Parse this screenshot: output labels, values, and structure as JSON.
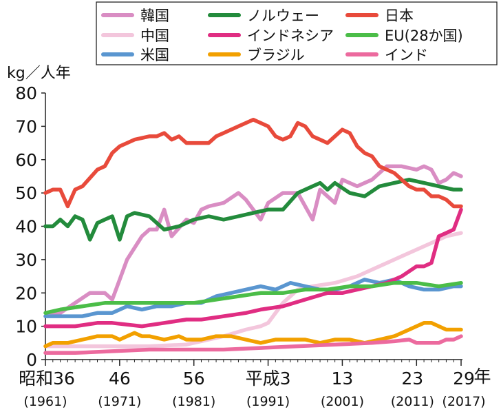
{
  "chart_data": {
    "type": "line",
    "ylabel": "kg／人年",
    "ylim": [
      0,
      80
    ],
    "yticks": [
      0,
      10,
      20,
      30,
      40,
      50,
      60,
      70,
      80
    ],
    "xlim": [
      1961,
      2017
    ],
    "x_tick_labels": [
      {
        "year": 1961,
        "line1": "昭和36",
        "line2": "(1961)"
      },
      {
        "year": 1971,
        "line1": "46",
        "line2": "(1971)"
      },
      {
        "year": 1981,
        "line1": "56",
        "line2": "(1981)"
      },
      {
        "year": 1991,
        "line1": "平成3",
        "line2": "(1991)"
      },
      {
        "year": 2001,
        "line1": "13",
        "line2": "(2001)"
      },
      {
        "year": 2011,
        "line1": "23",
        "line2": "(2011)"
      },
      {
        "year": 2017,
        "line1": "29",
        "line2": "(2017)"
      }
    ],
    "x_unit_label": "年",
    "legend_placement": "top",
    "series": [
      {
        "name": "韓国",
        "color": "#d98dc3",
        "points": [
          [
            1961,
            13
          ],
          [
            1963,
            14
          ],
          [
            1965,
            17
          ],
          [
            1967,
            20
          ],
          [
            1969,
            20
          ],
          [
            1970,
            18
          ],
          [
            1971,
            24
          ],
          [
            1972,
            30
          ],
          [
            1974,
            37
          ],
          [
            1975,
            39
          ],
          [
            1976,
            39
          ],
          [
            1977,
            45
          ],
          [
            1978,
            37
          ],
          [
            1980,
            42
          ],
          [
            1981,
            41
          ],
          [
            1982,
            45
          ],
          [
            1983,
            46
          ],
          [
            1985,
            47
          ],
          [
            1987,
            50
          ],
          [
            1988,
            48
          ],
          [
            1990,
            42
          ],
          [
            1991,
            47
          ],
          [
            1993,
            50
          ],
          [
            1995,
            50
          ],
          [
            1997,
            42
          ],
          [
            1998,
            51
          ],
          [
            2000,
            47
          ],
          [
            2001,
            54
          ],
          [
            2003,
            52
          ],
          [
            2005,
            54
          ],
          [
            2007,
            58
          ],
          [
            2009,
            58
          ],
          [
            2011,
            57
          ],
          [
            2012,
            58
          ],
          [
            2013,
            57
          ],
          [
            2014,
            53
          ],
          [
            2015,
            54
          ],
          [
            2016,
            56
          ],
          [
            2017,
            55
          ]
        ]
      },
      {
        "name": "中国",
        "color": "#f3c6dc",
        "points": [
          [
            1961,
            4
          ],
          [
            1965,
            4
          ],
          [
            1970,
            4
          ],
          [
            1975,
            4
          ],
          [
            1980,
            4.5
          ],
          [
            1985,
            7
          ],
          [
            1988,
            9
          ],
          [
            1990,
            10
          ],
          [
            1991,
            11
          ],
          [
            1993,
            17
          ],
          [
            1995,
            21
          ],
          [
            1997,
            22
          ],
          [
            2000,
            23
          ],
          [
            2003,
            25
          ],
          [
            2005,
            27
          ],
          [
            2007,
            29
          ],
          [
            2009,
            31
          ],
          [
            2011,
            33
          ],
          [
            2013,
            35
          ],
          [
            2015,
            37
          ],
          [
            2017,
            38
          ]
        ]
      },
      {
        "name": "米国",
        "color": "#5a96d0",
        "points": [
          [
            1961,
            13
          ],
          [
            1963,
            13
          ],
          [
            1966,
            13
          ],
          [
            1968,
            14
          ],
          [
            1970,
            14
          ],
          [
            1972,
            16
          ],
          [
            1974,
            15
          ],
          [
            1976,
            16
          ],
          [
            1978,
            16
          ],
          [
            1980,
            17
          ],
          [
            1982,
            17
          ],
          [
            1984,
            19
          ],
          [
            1986,
            20
          ],
          [
            1988,
            21
          ],
          [
            1990,
            22
          ],
          [
            1992,
            21
          ],
          [
            1994,
            23
          ],
          [
            1996,
            22
          ],
          [
            1998,
            21
          ],
          [
            2000,
            21
          ],
          [
            2002,
            22
          ],
          [
            2004,
            24
          ],
          [
            2006,
            23
          ],
          [
            2008,
            24
          ],
          [
            2010,
            22
          ],
          [
            2012,
            21
          ],
          [
            2014,
            21
          ],
          [
            2016,
            22
          ],
          [
            2017,
            22
          ]
        ]
      },
      {
        "name": "ノルウェー",
        "color": "#238b3c",
        "points": [
          [
            1961,
            40
          ],
          [
            1962,
            40
          ],
          [
            1963,
            42
          ],
          [
            1964,
            40
          ],
          [
            1965,
            43
          ],
          [
            1966,
            42
          ],
          [
            1967,
            36
          ],
          [
            1968,
            41
          ],
          [
            1969,
            42
          ],
          [
            1970,
            43
          ],
          [
            1971,
            36
          ],
          [
            1972,
            43
          ],
          [
            1973,
            44
          ],
          [
            1975,
            43
          ],
          [
            1976,
            41
          ],
          [
            1977,
            39
          ],
          [
            1979,
            40
          ],
          [
            1981,
            42
          ],
          [
            1983,
            43
          ],
          [
            1985,
            42
          ],
          [
            1987,
            43
          ],
          [
            1989,
            44
          ],
          [
            1991,
            45
          ],
          [
            1993,
            45
          ],
          [
            1995,
            50
          ],
          [
            1997,
            52
          ],
          [
            1998,
            53
          ],
          [
            1999,
            51
          ],
          [
            2000,
            53
          ],
          [
            2002,
            50
          ],
          [
            2004,
            49
          ],
          [
            2006,
            52
          ],
          [
            2008,
            53
          ],
          [
            2010,
            54
          ],
          [
            2012,
            53
          ],
          [
            2014,
            52
          ],
          [
            2016,
            51
          ],
          [
            2017,
            51
          ]
        ]
      },
      {
        "name": "インドネシア",
        "color": "#e02d82",
        "points": [
          [
            1961,
            10
          ],
          [
            1965,
            10
          ],
          [
            1968,
            11
          ],
          [
            1970,
            11
          ],
          [
            1974,
            10
          ],
          [
            1977,
            11
          ],
          [
            1980,
            12
          ],
          [
            1982,
            12
          ],
          [
            1985,
            13
          ],
          [
            1988,
            14
          ],
          [
            1990,
            15
          ],
          [
            1993,
            16
          ],
          [
            1996,
            18
          ],
          [
            1999,
            20
          ],
          [
            2001,
            20
          ],
          [
            2003,
            21
          ],
          [
            2005,
            22
          ],
          [
            2007,
            23
          ],
          [
            2009,
            25
          ],
          [
            2011,
            28
          ],
          [
            2012,
            28
          ],
          [
            2013,
            29
          ],
          [
            2014,
            37
          ],
          [
            2015,
            38
          ],
          [
            2016,
            39
          ],
          [
            2017,
            45
          ]
        ]
      },
      {
        "name": "ブラジル",
        "color": "#f2a000",
        "points": [
          [
            1961,
            4
          ],
          [
            1962,
            5
          ],
          [
            1964,
            5
          ],
          [
            1966,
            6
          ],
          [
            1968,
            7
          ],
          [
            1970,
            7
          ],
          [
            1971,
            6
          ],
          [
            1972,
            7
          ],
          [
            1973,
            8
          ],
          [
            1974,
            7
          ],
          [
            1975,
            7
          ],
          [
            1977,
            6
          ],
          [
            1979,
            7
          ],
          [
            1980,
            6
          ],
          [
            1982,
            6
          ],
          [
            1984,
            7
          ],
          [
            1986,
            7
          ],
          [
            1988,
            6
          ],
          [
            1990,
            5
          ],
          [
            1992,
            6
          ],
          [
            1994,
            6
          ],
          [
            1996,
            6
          ],
          [
            1998,
            5
          ],
          [
            2000,
            6
          ],
          [
            2002,
            6
          ],
          [
            2004,
            5
          ],
          [
            2006,
            6
          ],
          [
            2008,
            7
          ],
          [
            2010,
            9
          ],
          [
            2011,
            10
          ],
          [
            2012,
            11
          ],
          [
            2013,
            11
          ],
          [
            2014,
            10
          ],
          [
            2015,
            9
          ],
          [
            2016,
            9
          ],
          [
            2017,
            9
          ]
        ]
      },
      {
        "name": "日本",
        "color": "#e84a3b",
        "points": [
          [
            1961,
            50
          ],
          [
            1962,
            51
          ],
          [
            1963,
            51
          ],
          [
            1964,
            46
          ],
          [
            1965,
            51
          ],
          [
            1966,
            52
          ],
          [
            1968,
            57
          ],
          [
            1969,
            58
          ],
          [
            1970,
            62
          ],
          [
            1971,
            64
          ],
          [
            1972,
            65
          ],
          [
            1973,
            66
          ],
          [
            1975,
            67
          ],
          [
            1976,
            67
          ],
          [
            1977,
            68
          ],
          [
            1978,
            66
          ],
          [
            1979,
            67
          ],
          [
            1980,
            65
          ],
          [
            1981,
            65
          ],
          [
            1983,
            65
          ],
          [
            1984,
            67
          ],
          [
            1985,
            68
          ],
          [
            1987,
            70
          ],
          [
            1989,
            72
          ],
          [
            1990,
            71
          ],
          [
            1991,
            70
          ],
          [
            1992,
            67
          ],
          [
            1993,
            66
          ],
          [
            1994,
            67
          ],
          [
            1995,
            71
          ],
          [
            1996,
            70
          ],
          [
            1997,
            67
          ],
          [
            1998,
            66
          ],
          [
            1999,
            65
          ],
          [
            2001,
            69
          ],
          [
            2002,
            68
          ],
          [
            2003,
            64
          ],
          [
            2004,
            62
          ],
          [
            2005,
            61
          ],
          [
            2006,
            58
          ],
          [
            2007,
            57
          ],
          [
            2008,
            56
          ],
          [
            2009,
            54
          ],
          [
            2010,
            52
          ],
          [
            2011,
            51
          ],
          [
            2012,
            51
          ],
          [
            2013,
            49
          ],
          [
            2014,
            49
          ],
          [
            2015,
            48
          ],
          [
            2016,
            46
          ],
          [
            2017,
            46
          ]
        ]
      },
      {
        "name": "EU(28か国)",
        "color": "#4bbd48",
        "points": [
          [
            1961,
            14
          ],
          [
            1963,
            15
          ],
          [
            1966,
            16
          ],
          [
            1969,
            17
          ],
          [
            1972,
            17
          ],
          [
            1975,
            17
          ],
          [
            1978,
            17
          ],
          [
            1981,
            17
          ],
          [
            1984,
            18
          ],
          [
            1987,
            19
          ],
          [
            1990,
            20
          ],
          [
            1993,
            20
          ],
          [
            1996,
            21
          ],
          [
            1999,
            21
          ],
          [
            2002,
            22
          ],
          [
            2005,
            22
          ],
          [
            2008,
            23
          ],
          [
            2011,
            23
          ],
          [
            2014,
            22
          ],
          [
            2017,
            23
          ]
        ]
      },
      {
        "name": "インド",
        "color": "#ec6a9e",
        "points": [
          [
            1961,
            2
          ],
          [
            1965,
            2
          ],
          [
            1970,
            2.5
          ],
          [
            1975,
            3
          ],
          [
            1980,
            3
          ],
          [
            1985,
            3
          ],
          [
            1990,
            3.5
          ],
          [
            1995,
            4
          ],
          [
            2000,
            4.5
          ],
          [
            2005,
            5
          ],
          [
            2008,
            5.5
          ],
          [
            2010,
            6
          ],
          [
            2011,
            5
          ],
          [
            2013,
            5
          ],
          [
            2014,
            5
          ],
          [
            2015,
            6
          ],
          [
            2016,
            6
          ],
          [
            2017,
            7
          ]
        ]
      }
    ]
  }
}
